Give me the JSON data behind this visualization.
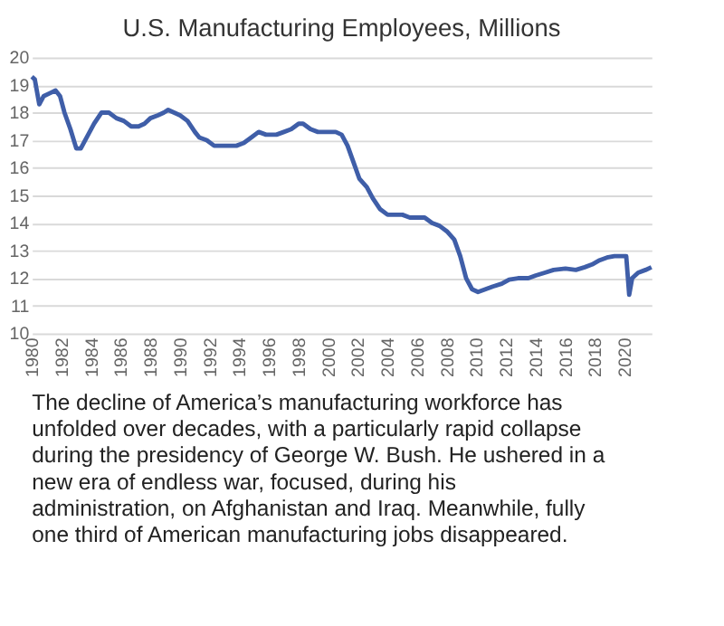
{
  "chart_data": {
    "type": "line",
    "title": "U.S. Manufacturing Employees, Millions",
    "x": [
      1980.0,
      1980.2,
      1980.5,
      1980.8,
      1981.2,
      1981.6,
      1981.9,
      1982.2,
      1982.6,
      1983.0,
      1983.3,
      1983.7,
      1984.2,
      1984.7,
      1985.2,
      1985.7,
      1986.2,
      1986.7,
      1987.2,
      1987.6,
      1988.0,
      1988.5,
      1988.9,
      1989.2,
      1989.6,
      1990.0,
      1990.5,
      1991.0,
      1991.3,
      1991.8,
      1992.3,
      1992.8,
      1993.3,
      1993.8,
      1994.3,
      1994.8,
      1995.3,
      1995.8,
      1996.5,
      1997.0,
      1997.5,
      1998.0,
      1998.3,
      1998.8,
      1999.3,
      1999.8,
      2000.5,
      2000.9,
      2001.3,
      2001.7,
      2002.1,
      2002.6,
      2003.0,
      2003.5,
      2004.0,
      2004.5,
      2005.0,
      2005.5,
      2006.0,
      2006.5,
      2007.0,
      2007.5,
      2008.0,
      2008.5,
      2008.9,
      2009.3,
      2009.7,
      2010.1,
      2010.6,
      2011.1,
      2011.7,
      2012.2,
      2012.8,
      2013.5,
      2014.0,
      2014.6,
      2015.2,
      2016.0,
      2016.7,
      2017.3,
      2017.8,
      2018.3,
      2018.8,
      2019.3,
      2019.8,
      2020.1,
      2020.3,
      2020.5,
      2020.9,
      2021.4,
      2021.8
    ],
    "series": [
      {
        "color": "#3f5ea8",
        "values": [
          19.3,
          19.2,
          18.3,
          18.6,
          18.7,
          18.8,
          18.6,
          18.0,
          17.4,
          16.7,
          16.7,
          17.1,
          17.6,
          18.0,
          18.0,
          17.8,
          17.7,
          17.5,
          17.5,
          17.6,
          17.8,
          17.9,
          18.0,
          18.1,
          18.0,
          17.9,
          17.7,
          17.3,
          17.1,
          17.0,
          16.8,
          16.8,
          16.8,
          16.8,
          16.9,
          17.1,
          17.3,
          17.2,
          17.2,
          17.3,
          17.4,
          17.6,
          17.6,
          17.4,
          17.3,
          17.3,
          17.3,
          17.2,
          16.8,
          16.2,
          15.6,
          15.3,
          14.9,
          14.5,
          14.3,
          14.3,
          14.3,
          14.2,
          14.2,
          14.2,
          14.0,
          13.9,
          13.7,
          13.4,
          12.8,
          12.0,
          11.6,
          11.5,
          11.6,
          11.7,
          11.8,
          11.95,
          12.0,
          12.0,
          12.1,
          12.2,
          12.3,
          12.35,
          12.3,
          12.4,
          12.5,
          12.65,
          12.75,
          12.8,
          12.8,
          12.8,
          11.4,
          12.0,
          12.2,
          12.3,
          12.4
        ]
      }
    ],
    "xlim": [
      1980,
      2021.8
    ],
    "xticks": [
      1980,
      1982,
      1984,
      1986,
      1988,
      1990,
      1992,
      1994,
      1996,
      1998,
      2000,
      2002,
      2004,
      2006,
      2008,
      2010,
      2012,
      2014,
      2016,
      2018,
      2020
    ],
    "ylim": [
      10,
      20
    ],
    "yticks": [
      10,
      11,
      12,
      13,
      14,
      15,
      16,
      17,
      18,
      19,
      20
    ],
    "grid": "y",
    "legend": false,
    "annotations": [
      "The decline of America’s manufacturing workforce has unfolded over decades, with a particularly rapid collapse during the presidency of George W. Bush. He ushered in a new era of endless war, focused, during his administration, on Afghanistan and Iraq. Meanwhile, fully one third of American manufacturing jobs disappeared."
    ]
  }
}
